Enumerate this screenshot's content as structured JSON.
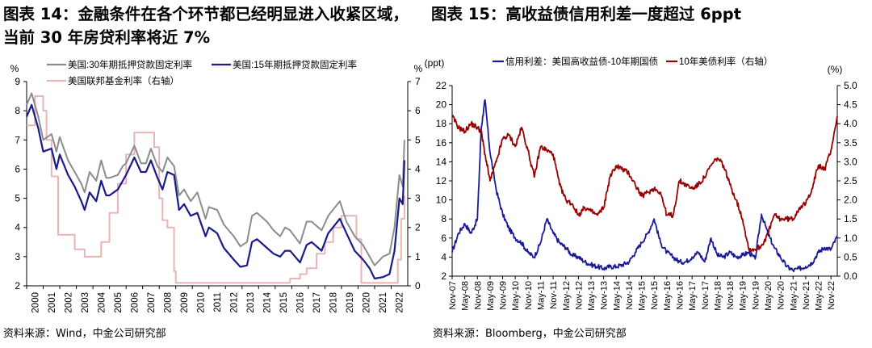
{
  "titles": {
    "left_line1": "图表 14：金融条件在各个环节都已经明显进入收紧区域，",
    "left_line2": "当前 30 年房贷利率将近 7%",
    "right": "图表 15：高收益债信用利差一度超过 6ppt"
  },
  "sources": {
    "left": "资料来源：Wind，中金公司研究部",
    "right": "资料来源：Bloomberg，中金公司研究部"
  },
  "chart_data": [
    {
      "type": "line",
      "title": "金融条件在各个环节都已经明显进入收紧区域，当前 30 年房贷利率将近 7%",
      "left_axis_unit": "%",
      "right_axis_unit": "%",
      "ylim_left": [
        2,
        9
      ],
      "ylim_right": [
        0,
        7
      ],
      "xlim": [
        2000,
        2023
      ],
      "xticks": [
        "2000",
        "2001",
        "2002",
        "2003",
        "2004",
        "2005",
        "2006",
        "2007",
        "2008",
        "2009",
        "2010",
        "2011",
        "2012",
        "2013",
        "2014",
        "2015",
        "2016",
        "2017",
        "2018",
        "2019",
        "2020",
        "2021",
        "2022"
      ],
      "yticks_left": [
        "2",
        "3",
        "4",
        "5",
        "6",
        "7",
        "8",
        "9"
      ],
      "yticks_right": [
        "0",
        "1",
        "2",
        "3",
        "4",
        "5",
        "6",
        "7"
      ],
      "series": [
        {
          "name": "美国:30年期抵押贷款固定利率",
          "color": "#8c8c8c",
          "axis": "left",
          "x": [
            2000,
            2000.3,
            2000.7,
            2001,
            2001.5,
            2001.8,
            2002,
            2002.5,
            2002.9,
            2003.3,
            2003.5,
            2003.8,
            2004.2,
            2004.5,
            2004.8,
            2005,
            2005.5,
            2005.8,
            2006,
            2006.5,
            2006.9,
            2007.2,
            2007.5,
            2007.9,
            2008.2,
            2008.5,
            2008.9,
            2009.2,
            2009.5,
            2009.9,
            2010.3,
            2010.8,
            2011,
            2011.5,
            2011.9,
            2012.5,
            2012.9,
            2013.3,
            2013.6,
            2013.9,
            2014.5,
            2014.9,
            2015.3,
            2015.6,
            2015.9,
            2016.5,
            2016.9,
            2017.2,
            2017.8,
            2018.2,
            2018.9,
            2019.3,
            2019.8,
            2020.3,
            2020.7,
            2021,
            2021.5,
            2021.9,
            2022.2,
            2022.5,
            2022.7,
            2022.8
          ],
          "values": [
            8.2,
            8.6,
            7.8,
            7.0,
            7.2,
            6.6,
            7.1,
            6.3,
            5.9,
            5.5,
            5.2,
            5.9,
            5.6,
            6.3,
            5.7,
            5.7,
            5.8,
            6.1,
            6.2,
            6.8,
            6.2,
            6.2,
            6.7,
            6.1,
            5.9,
            6.4,
            6.1,
            5.1,
            5.3,
            4.9,
            5.2,
            4.3,
            4.7,
            4.6,
            4.1,
            3.7,
            3.35,
            3.5,
            4.4,
            4.5,
            4.2,
            3.9,
            3.7,
            4.0,
            3.9,
            3.45,
            4.2,
            4.2,
            3.9,
            4.4,
            4.9,
            4.2,
            3.7,
            3.4,
            3.0,
            2.7,
            3.0,
            3.1,
            4.0,
            5.8,
            5.4,
            7.0
          ]
        },
        {
          "name": "美国:15年期抵押贷款固定利率",
          "color": "#1a1a8c",
          "axis": "left",
          "x": [
            2000,
            2000.3,
            2000.7,
            2001,
            2001.5,
            2001.8,
            2002,
            2002.5,
            2002.9,
            2003.3,
            2003.5,
            2003.8,
            2004.2,
            2004.5,
            2004.8,
            2005,
            2005.5,
            2005.8,
            2006,
            2006.5,
            2006.9,
            2007.2,
            2007.5,
            2007.9,
            2008.2,
            2008.5,
            2008.9,
            2009.2,
            2009.5,
            2009.9,
            2010.3,
            2010.8,
            2011,
            2011.5,
            2011.9,
            2012.5,
            2012.9,
            2013.3,
            2013.6,
            2013.9,
            2014.5,
            2014.9,
            2015.3,
            2015.6,
            2015.9,
            2016.5,
            2016.9,
            2017.2,
            2017.8,
            2018.2,
            2018.9,
            2019.3,
            2019.8,
            2020.3,
            2020.7,
            2021,
            2021.5,
            2021.9,
            2022.2,
            2022.5,
            2022.7,
            2022.8
          ],
          "values": [
            7.8,
            8.2,
            7.4,
            6.6,
            6.7,
            6.0,
            6.5,
            5.8,
            5.4,
            4.9,
            4.6,
            5.2,
            4.9,
            5.6,
            5.1,
            5.1,
            5.3,
            5.6,
            5.8,
            6.4,
            5.9,
            5.9,
            6.3,
            5.7,
            5.3,
            5.9,
            5.8,
            4.6,
            4.8,
            4.4,
            4.5,
            3.7,
            4.0,
            3.8,
            3.3,
            2.9,
            2.65,
            2.7,
            3.5,
            3.6,
            3.3,
            3.1,
            3.0,
            3.2,
            3.2,
            2.8,
            3.4,
            3.5,
            3.2,
            3.8,
            4.3,
            3.8,
            3.2,
            2.9,
            2.6,
            2.25,
            2.3,
            2.4,
            3.2,
            5.0,
            4.8,
            6.3
          ]
        },
        {
          "name": "美国联邦基金利率（右轴）",
          "color": "#e8b4b4",
          "axis": "right",
          "x": [
            2000,
            2000.5,
            2001,
            2001.2,
            2001.5,
            2001.9,
            2002,
            2002.9,
            2003,
            2003.5,
            2004,
            2004.5,
            2005,
            2005.5,
            2006,
            2006.5,
            2007,
            2007.5,
            2007.7,
            2008,
            2008.2,
            2008.5,
            2008.9,
            2009,
            2015.9,
            2016.5,
            2016.9,
            2017.5,
            2018,
            2018.5,
            2019,
            2019.5,
            2019.9,
            2020.1,
            2020.2,
            2022.2,
            2022.4,
            2022.6,
            2022.8
          ],
          "values": [
            5.5,
            6.5,
            6.0,
            5.0,
            3.75,
            1.75,
            1.75,
            1.25,
            1.25,
            1.0,
            1.0,
            1.5,
            2.5,
            3.5,
            4.5,
            5.25,
            5.25,
            5.25,
            4.75,
            3.0,
            2.25,
            2.0,
            0.5,
            0.1,
            0.25,
            0.4,
            0.6,
            1.1,
            1.5,
            2.0,
            2.4,
            2.4,
            1.6,
            1.6,
            0.1,
            0.1,
            0.9,
            2.3,
            3.1
          ]
        }
      ]
    },
    {
      "type": "line",
      "title": "高收益债信用利差一度超过 6ppt",
      "left_axis_unit": "(ppt)",
      "right_axis_unit": "(%)",
      "ylim_left": [
        2,
        22
      ],
      "ylim_right": [
        0,
        5
      ],
      "xticks": [
        "Nov-07",
        "May-08",
        "Nov-08",
        "May-09",
        "Nov-09",
        "May-10",
        "Nov-10",
        "May-11",
        "Nov-11",
        "May-12",
        "Nov-12",
        "May-13",
        "Nov-13",
        "May-14",
        "Nov-14",
        "May-15",
        "Nov-15",
        "May-16",
        "Nov-16",
        "May-17",
        "Nov-17",
        "May-18",
        "Nov-18",
        "May-19",
        "Nov-19",
        "May-20",
        "Nov-20",
        "May-21",
        "Nov-21",
        "May-22",
        "Nov-22"
      ],
      "yticks_left": [
        "2",
        "4",
        "6",
        "8",
        "10",
        "12",
        "14",
        "16",
        "18",
        "20",
        "22"
      ],
      "yticks_right": [
        "0.0",
        "0.5",
        "1.0",
        "1.5",
        "2.0",
        "2.5",
        "3.0",
        "3.5",
        "4.0",
        "4.5",
        "5.0"
      ],
      "series": [
        {
          "name": "信用利差：美国高收益债-10年期国债",
          "color": "#1a1a99",
          "axis": "left",
          "x": [
            0,
            0.5,
            1,
            1.5,
            2,
            2.3,
            2.6,
            3,
            3.5,
            4,
            4.5,
            5,
            5.5,
            6,
            6.5,
            7,
            7.5,
            8,
            8.5,
            9,
            9.5,
            10,
            10.5,
            11,
            11.5,
            12,
            12.5,
            13,
            13.5,
            14,
            14.5,
            15,
            15.5,
            16,
            16.5,
            17,
            17.5,
            18,
            18.5,
            19,
            19.5,
            20,
            20.5,
            21,
            21.5,
            22,
            22.5,
            23,
            23.5,
            24,
            24.5,
            25,
            25.5,
            26,
            26.5,
            27,
            27.5,
            28,
            28.5,
            29,
            29.5,
            30,
            30.5
          ],
          "values": [
            4.5,
            6.5,
            7.5,
            6.5,
            8.0,
            17.5,
            20.5,
            15.0,
            11.0,
            8.5,
            7.0,
            6.0,
            5.5,
            4.5,
            4.0,
            5.5,
            8.0,
            6.5,
            5.5,
            5.0,
            4.2,
            4.0,
            3.5,
            3.2,
            3.0,
            2.8,
            3.0,
            3.0,
            3.2,
            3.5,
            4.5,
            5.5,
            6.5,
            8.0,
            5.5,
            4.5,
            4.0,
            3.5,
            3.5,
            4.0,
            4.5,
            3.5,
            6.0,
            4.2,
            4.0,
            4.5,
            4.0,
            4.2,
            4.5,
            3.8,
            8.5,
            6.5,
            5.0,
            4.0,
            3.0,
            2.6,
            2.8,
            3.0,
            3.4,
            4.5,
            5.0,
            4.8,
            6.2
          ]
        },
        {
          "name": "10年美债利率（右轴）",
          "color": "#990000",
          "axis": "right",
          "x": [
            0,
            0.5,
            1,
            1.5,
            2,
            2.3,
            2.6,
            3,
            3.5,
            4,
            4.5,
            5,
            5.5,
            6,
            6.5,
            7,
            7.5,
            8,
            8.5,
            9,
            9.5,
            10,
            10.5,
            11,
            11.5,
            12,
            12.5,
            13,
            13.5,
            14,
            14.5,
            15,
            15.5,
            16,
            16.5,
            17,
            17.5,
            18,
            18.5,
            19,
            19.5,
            20,
            20.5,
            21,
            21.5,
            22,
            22.5,
            23,
            23.5,
            24,
            24.5,
            25,
            25.5,
            26,
            26.5,
            27,
            27.5,
            28,
            28.5,
            29,
            29.5,
            30,
            30.5
          ],
          "values": [
            4.2,
            3.9,
            3.8,
            4.0,
            3.9,
            3.8,
            3.2,
            2.5,
            3.0,
            3.6,
            3.7,
            3.4,
            3.9,
            3.3,
            2.6,
            3.4,
            3.3,
            3.2,
            2.4,
            2.0,
            1.9,
            1.6,
            1.8,
            1.7,
            1.6,
            1.8,
            2.6,
            2.9,
            2.8,
            2.7,
            2.4,
            2.1,
            2.2,
            2.3,
            2.2,
            1.6,
            1.6,
            2.5,
            2.4,
            2.3,
            2.4,
            2.6,
            2.9,
            3.1,
            2.9,
            2.4,
            2.0,
            1.5,
            0.7,
            0.7,
            0.8,
            1.1,
            1.6,
            1.5,
            1.5,
            1.5,
            1.8,
            1.9,
            2.3,
            2.9,
            2.8,
            3.3,
            4.2
          ]
        }
      ]
    }
  ]
}
